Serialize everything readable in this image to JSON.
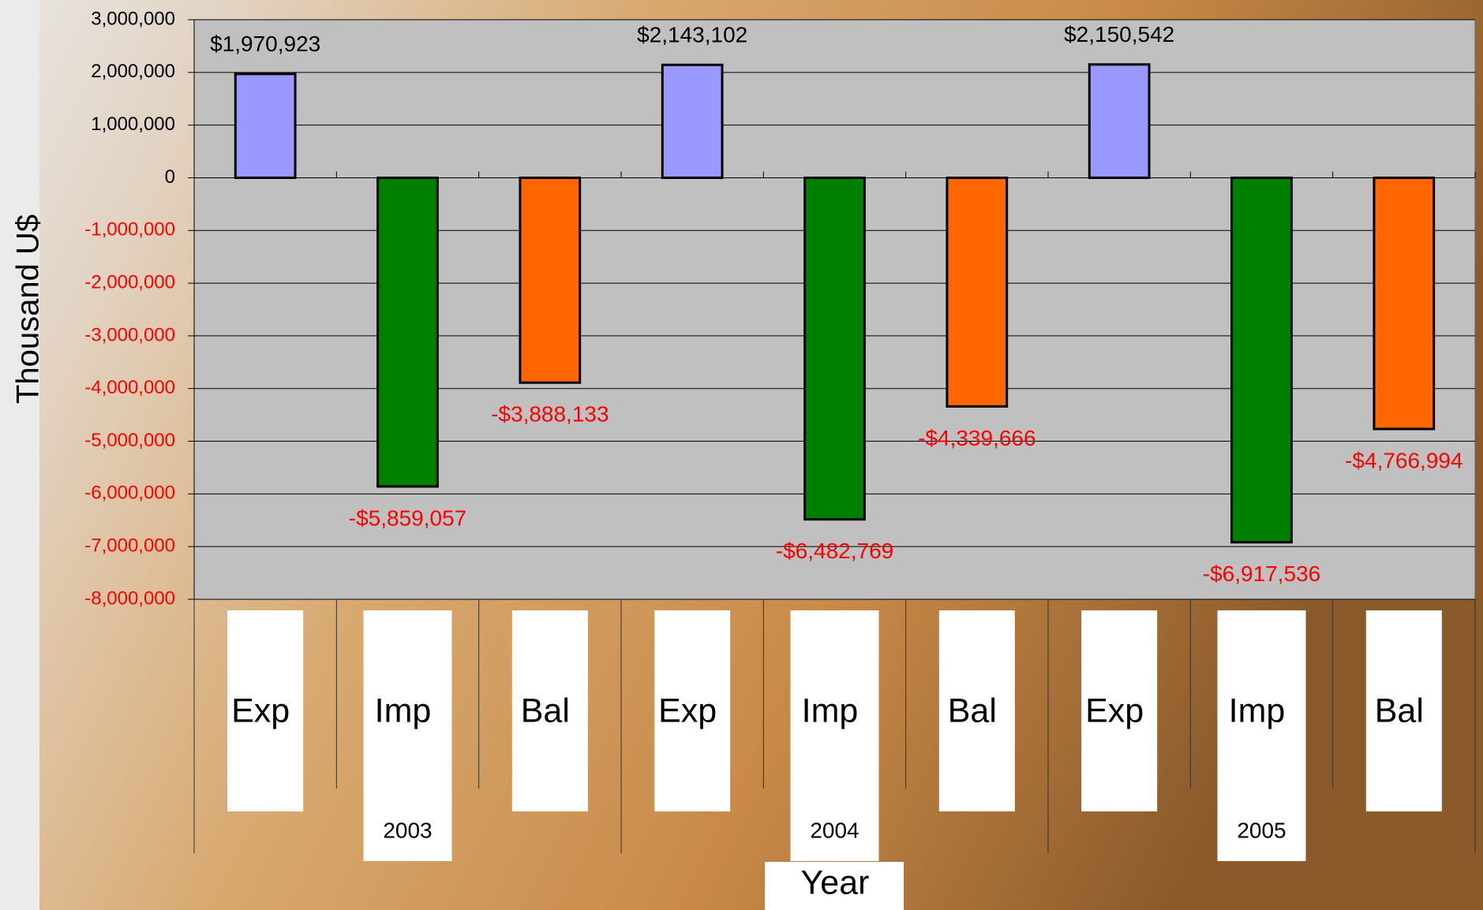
{
  "chart_data": {
    "type": "bar",
    "categories": [
      "Exp",
      "Imp",
      "Bal",
      "Exp",
      "Imp",
      "Bal",
      "Exp",
      "Imp",
      "Bal"
    ],
    "groups": [
      "2003",
      "2004",
      "2005"
    ],
    "values": [
      1970923,
      -5859057,
      -3888133,
      2143102,
      -6482769,
      -4339666,
      2150542,
      -6917536,
      -4766994
    ],
    "value_labels": [
      "$1,970,923",
      "-$5,859,057",
      "-$3,888,133",
      "$2,143,102",
      "-$6,482,769",
      "-$4,339,666",
      "$2,150,542",
      "-$6,917,536",
      "-$4,766,994"
    ],
    "colors": [
      "#9999ff",
      "#008000",
      "#ff6600"
    ],
    "ylabel": "Thousand U$",
    "xlabel": "Year",
    "ylim": [
      -8000000,
      3000000
    ],
    "yticks": [
      {
        "value": -8000000,
        "label": "-8,000,000"
      },
      {
        "value": -7000000,
        "label": "-7,000,000"
      },
      {
        "value": -6000000,
        "label": "-6,000,000"
      },
      {
        "value": -5000000,
        "label": "-5,000,000"
      },
      {
        "value": -4000000,
        "label": "-4,000,000"
      },
      {
        "value": -3000000,
        "label": "-3,000,000"
      },
      {
        "value": -2000000,
        "label": "-2,000,000"
      },
      {
        "value": -1000000,
        "label": "-1,000,000"
      },
      0,
      {
        "value": 1000000,
        "label": "1,000,000"
      },
      {
        "value": 2000000,
        "label": "2,000,000"
      },
      {
        "value": 3000000,
        "label": "3,000,000"
      }
    ],
    "grid": true
  }
}
